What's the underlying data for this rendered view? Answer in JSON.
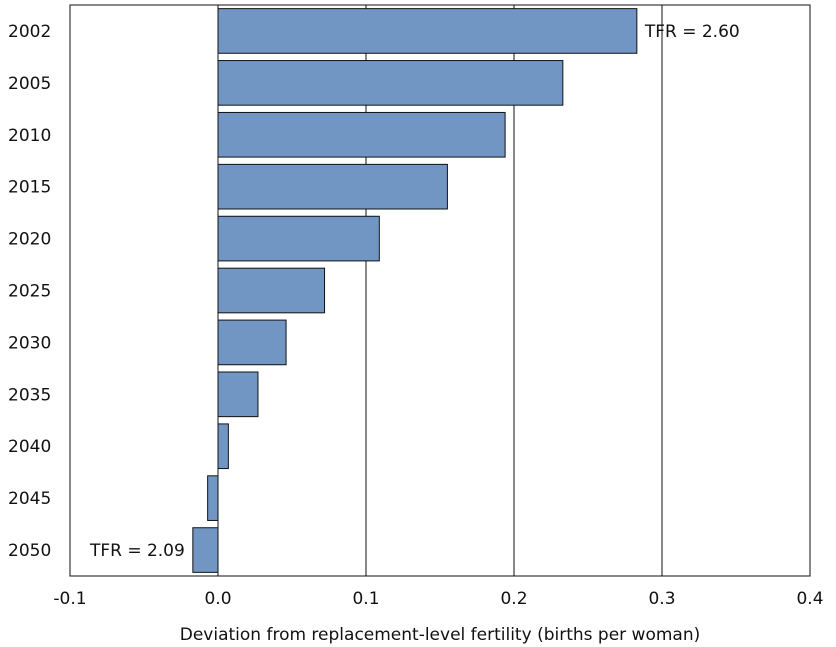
{
  "chart_data": {
    "type": "bar",
    "orientation": "horizontal",
    "categories": [
      "2002",
      "2005",
      "2010",
      "2015",
      "2020",
      "2025",
      "2030",
      "2035",
      "2040",
      "2045",
      "2050"
    ],
    "values": [
      0.283,
      0.233,
      0.194,
      0.155,
      0.109,
      0.072,
      0.046,
      0.027,
      0.007,
      -0.007,
      -0.017
    ],
    "xlabel": "Deviation from replacement-level fertility (births per woman)",
    "ylabel": "",
    "xlim": [
      -0.1,
      0.4
    ],
    "xticks": [
      "-0.1",
      "0.0",
      "0.1",
      "0.2",
      "0.3",
      "0.4"
    ],
    "grid": "vertical",
    "bar_color": "#7196c4",
    "bar_edge_color": "#111111",
    "annotations": [
      {
        "category": "2002",
        "text": "TFR = 2.60"
      },
      {
        "category": "2050",
        "text": "TFR = 2.09"
      }
    ]
  }
}
